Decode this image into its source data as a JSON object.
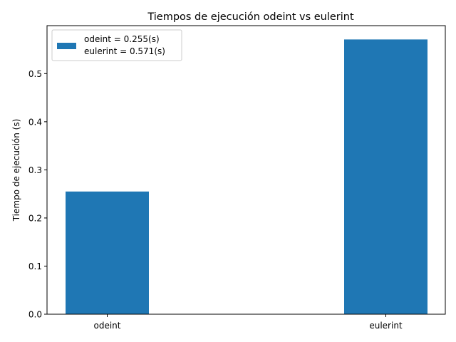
{
  "chart_data": {
    "type": "bar",
    "title": "Tiempos de ejecución odeint vs eulerint",
    "xlabel": "",
    "ylabel": "Tiempo de ejecución (s)",
    "categories": [
      "odeint",
      "eulerint"
    ],
    "values": [
      0.255,
      0.571
    ],
    "ylim": [
      0,
      0.5997
    ],
    "yticks": [
      0.0,
      0.1,
      0.2,
      0.3,
      0.4,
      0.5
    ],
    "ytick_labels": [
      "0.0",
      "0.1",
      "0.2",
      "0.3",
      "0.4",
      "0.5"
    ],
    "bar_color": "#1f77b4",
    "grid": false,
    "legend": {
      "placement": "top-left",
      "lines": [
        "odeint = 0.255(s)",
        "eulerint = 0.571(s)"
      ]
    }
  }
}
